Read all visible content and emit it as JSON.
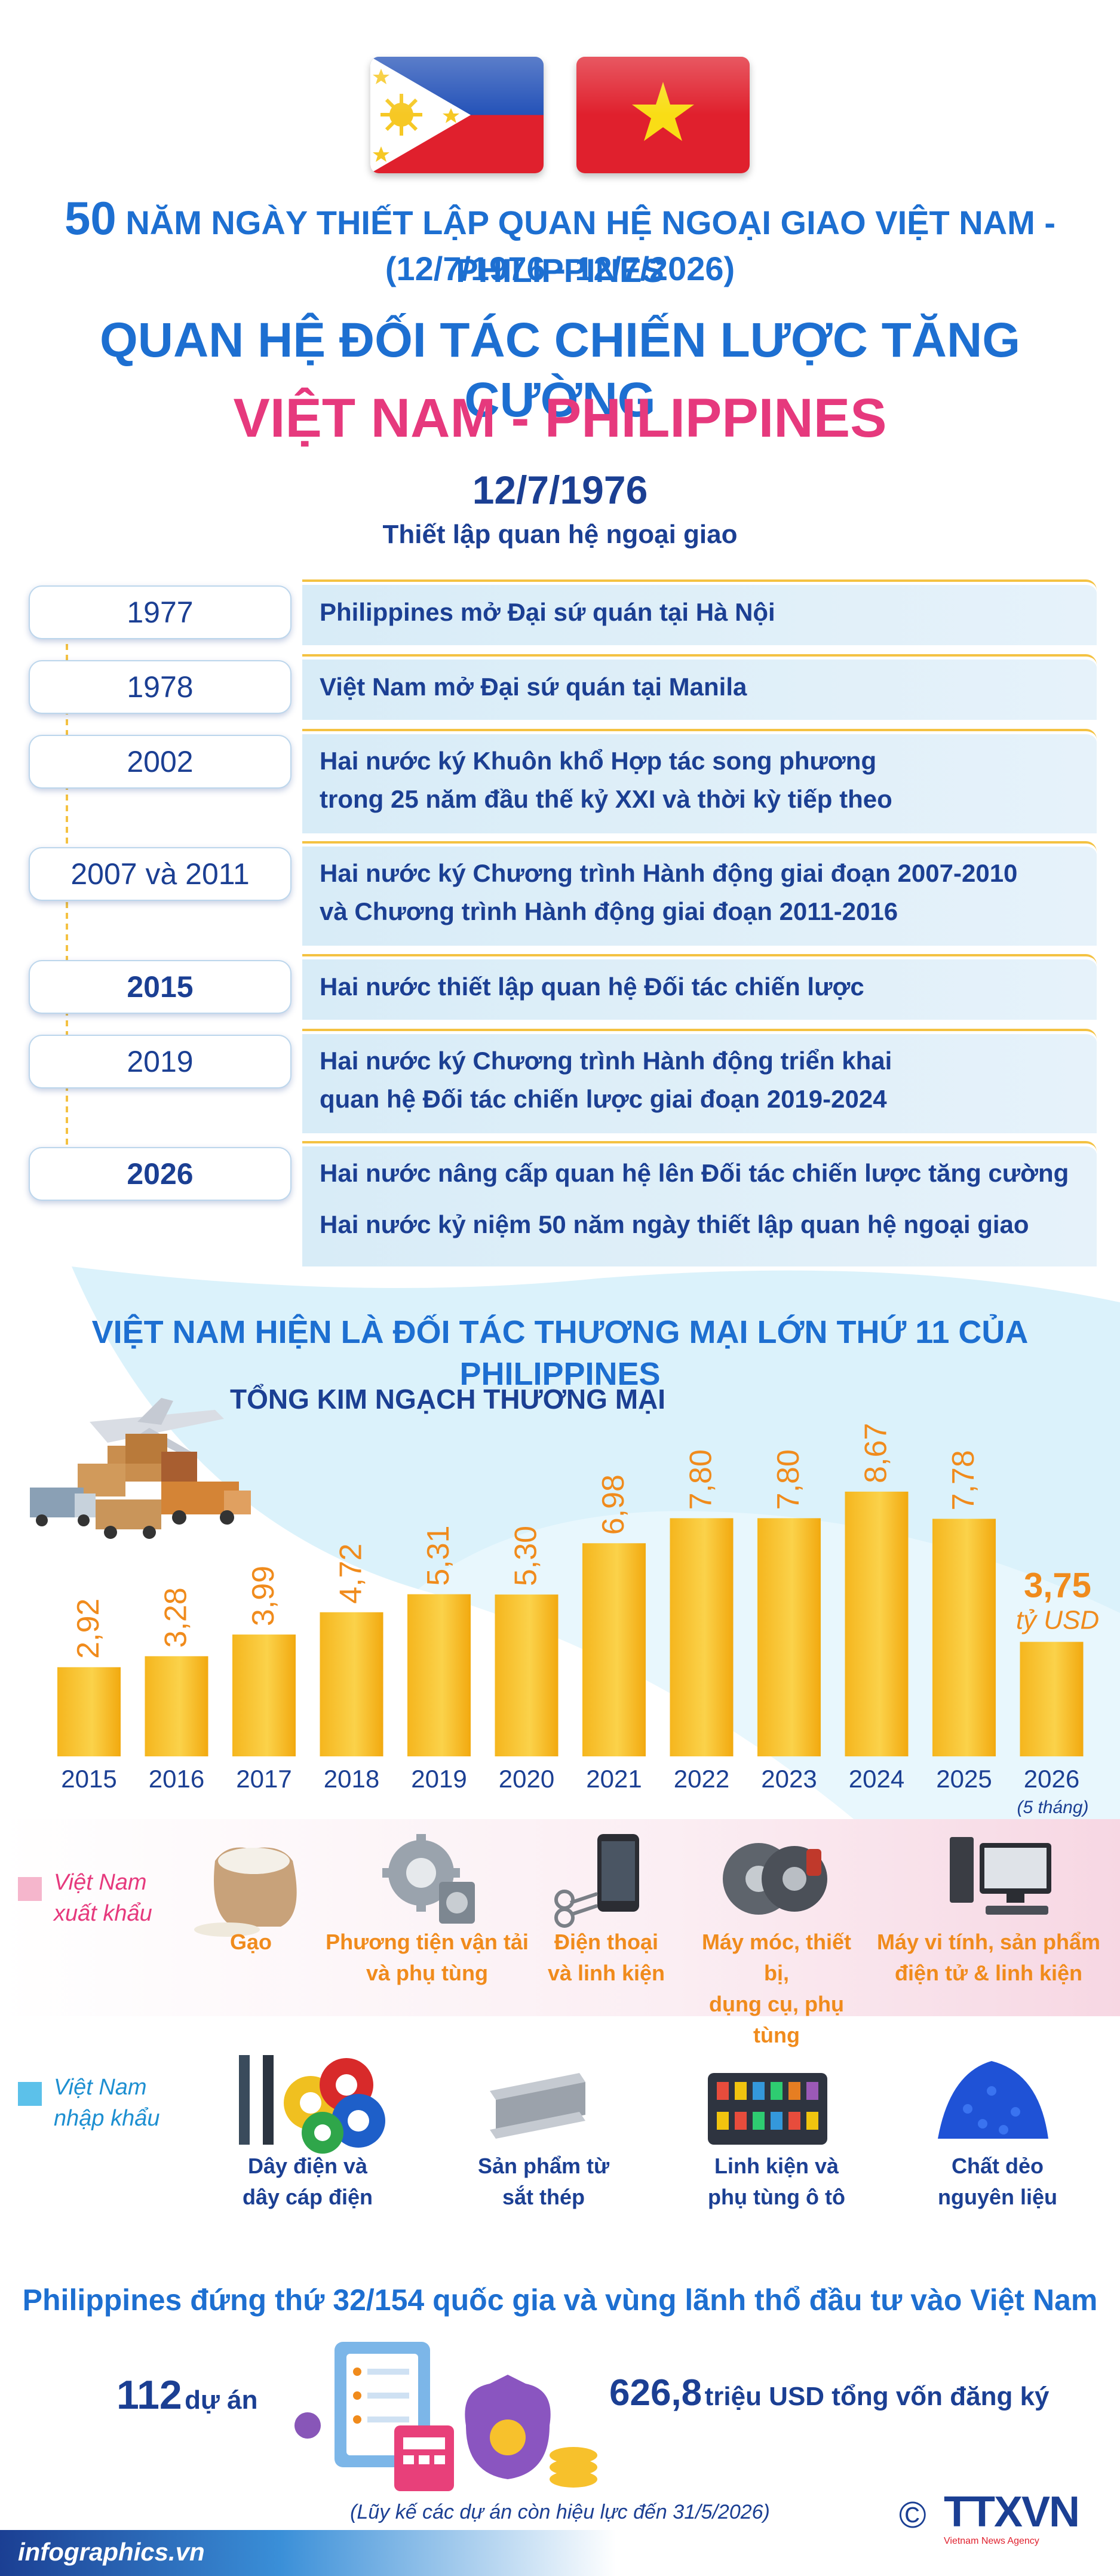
{
  "header": {
    "line1_number": "50",
    "line1_text": "NĂM NGÀY THIẾT LẬP QUAN HỆ NGOẠI GIAO VIỆT NAM - PHILIPPINES",
    "line2": "(12/7/1976 - 12/7/2026)",
    "title": "QUAN HỆ ĐỐI TÁC CHIẾN LƯỢC TĂNG CƯỜNG",
    "subtitle": "VIỆT NAM - PHILIPPINES",
    "date": "12/7/1976",
    "date_caption": "Thiết lập quan hệ ngoại giao"
  },
  "timeline": [
    {
      "year": "1977",
      "lines": [
        "Philippines mở Đại sứ quán tại Hà Nội"
      ]
    },
    {
      "year": "1978",
      "lines": [
        "Việt Nam mở Đại sứ quán tại Manila"
      ]
    },
    {
      "year": "2002",
      "lines": [
        "Hai nước ký Khuôn khổ Hợp tác song phương",
        "trong 25 năm đầu thế kỷ XXI và thời kỳ tiếp theo"
      ]
    },
    {
      "year": "2007 và 2011",
      "lines": [
        "Hai nước ký Chương trình Hành động giai đoạn 2007-2010",
        "và Chương trình Hành động giai đoạn 2011-2016"
      ]
    },
    {
      "year": "2015",
      "lines": [
        "Hai nước thiết lập quan hệ Đối tác chiến lược"
      ]
    },
    {
      "year": "2019",
      "lines": [
        "Hai nước ký Chương trình Hành động triển khai",
        "quan hệ Đối tác chiến lược giai đoạn 2019-2024"
      ]
    },
    {
      "year": "2026",
      "lines": [
        "Hai nước nâng cấp quan hệ lên Đối tác chiến lược tăng cường",
        "Hai nước kỷ niệm 50 năm ngày thiết lập quan hệ ngoại giao"
      ]
    }
  ],
  "trade": {
    "heading": "VIỆT NAM HIỆN LÀ ĐỐI TÁC THƯƠNG MẠI LỚN THỨ 11 CỦA PHILIPPINES",
    "chart_title": "TỔNG KIM NGẠCH THƯƠNG MẠI"
  },
  "chart_data": {
    "type": "bar",
    "title": "TỔNG KIM NGẠCH THƯƠNG MẠI",
    "categories": [
      "2015",
      "2016",
      "2017",
      "2018",
      "2019",
      "2020",
      "2021",
      "2022",
      "2023",
      "2024",
      "2025",
      "2026"
    ],
    "values": [
      2.92,
      3.28,
      3.99,
      4.72,
      5.31,
      5.3,
      6.98,
      7.8,
      7.8,
      8.67,
      7.78,
      3.75
    ],
    "value_labels": [
      "2,92",
      "3,28",
      "3,99",
      "4,72",
      "5,31",
      "5,30",
      "6,98",
      "7,80",
      "7,80",
      "8,67",
      "7,78",
      "3,75"
    ],
    "unit_label": "tỷ USD",
    "last_note": "(5 tháng)",
    "ylim": [
      0,
      9
    ]
  },
  "exports": {
    "side_label": [
      "Việt Nam",
      "xuất khẩu"
    ],
    "items": [
      {
        "label": [
          "Gạo"
        ],
        "icon": "rice-sack-icon"
      },
      {
        "label": [
          "Phương tiện vận tải",
          "và phụ tùng"
        ],
        "icon": "gears-icon"
      },
      {
        "label": [
          "Điện thoại",
          "và linh kiện"
        ],
        "icon": "phone-icon"
      },
      {
        "label": [
          "Máy móc, thiết bị,",
          "dụng cụ, phụ tùng"
        ],
        "icon": "brake-disc-icon"
      },
      {
        "label": [
          "Máy vi tính, sản phẩm",
          "điện tử & linh kiện"
        ],
        "icon": "computer-icon"
      }
    ]
  },
  "imports": {
    "side_label": [
      "Việt Nam",
      "nhập khẩu"
    ],
    "items": [
      {
        "label": [
          "Dây điện và",
          "dây cáp điện"
        ],
        "icon": "cable-icon"
      },
      {
        "label": [
          "Sản phẩm từ",
          "sắt thép"
        ],
        "icon": "steel-beam-icon"
      },
      {
        "label": [
          "Linh kiện và",
          "phụ tùng ô tô"
        ],
        "icon": "fuse-box-icon"
      },
      {
        "label": [
          "Chất dẻo",
          "nguyên liệu"
        ],
        "icon": "plastic-pellets-icon"
      }
    ]
  },
  "investment": {
    "heading": "Philippines đứng thứ 32/154 quốc gia và vùng lãnh thổ đầu tư vào Việt Nam",
    "projects_value": "112",
    "projects_label": "dự án",
    "capital_value": "626,8",
    "capital_label": "triệu USD tổng vốn đăng ký",
    "note": "(Lũy kế các dự án còn hiệu lực đến 31/5/2026)"
  },
  "footer": {
    "site": "infographics.vn",
    "copyright": "©",
    "agency_logo": "TTXVN",
    "agency_sub": "Vietnam News Agency"
  },
  "colors": {
    "navy": "#1b3f93",
    "blue": "#1d6fd1",
    "pink": "#e6397d",
    "orange": "#f08b1c",
    "bar": "#f7c12c",
    "timeline_bg": "#d8ecf7",
    "timeline_line": "#f4c242"
  }
}
